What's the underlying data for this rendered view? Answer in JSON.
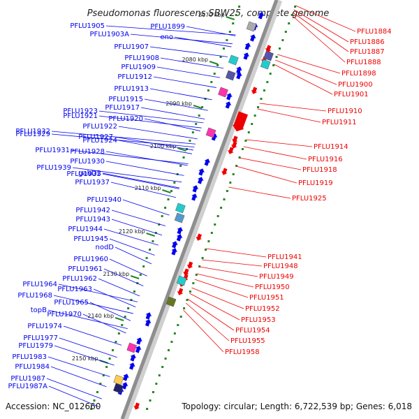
{
  "title": "Pseudomonas fluorescens SBW25, complete genome",
  "footer": {
    "accession": "Accession: NC_012660",
    "summary": "Topology: circular; Length: 6,722,539 bp; Genes: 6,018"
  },
  "colors": {
    "forward": "#0000ee",
    "reverse": "#ee0000",
    "tick": "#228822",
    "backbone": "#9a9a9a"
  },
  "kbp_ticks": [
    "2070 kbp",
    "2080 kbp",
    "2090 kbp",
    "2100 kbp",
    "2110 kbp",
    "2120 kbp",
    "2130 kbp",
    "2140 kbp",
    "2150 kbp"
  ],
  "left_labels": [
    "PFLU1905",
    "PFLU1899",
    "PFLU1903A",
    "eno",
    "PFLU1907",
    "PFLU1908",
    "PFLU1909",
    "PFLU1912",
    "PFLU1913",
    "PFLU1915",
    "PFLU1917",
    "PFLU1923",
    "PFLU1921",
    "PFLU1920",
    "PFLU1922",
    "PFLU1932",
    "PFLU1929",
    "PFLU1927",
    "PFLU1924",
    "PFLU1931",
    "PFLU1928",
    "PFLU1930",
    "PFLU1939",
    "gabD2",
    "PFLU1935",
    "PFLU1937",
    "PFLU1940",
    "PFLU1942",
    "PFLU1943",
    "PFLU1944",
    "PFLU1945",
    "nodD",
    "PFLU1960",
    "PFLU1961",
    "PFLU1962",
    "PFLU1964",
    "PFLU1963",
    "PFLU1968",
    "PFLU1965",
    "topB",
    "PFLU1970",
    "PFLU1974",
    "PFLU1977",
    "PFLU1979",
    "PFLU1983",
    "PFLU1984",
    "PFLU1987",
    "PFLU1987A"
  ],
  "right_labels": [
    "PFLU1884",
    "PFLU1886",
    "PFLU1887",
    "PFLU1888",
    "PFLU1898",
    "PFLU1900",
    "PFLU1901",
    "PFLU1910",
    "PFLU1911",
    "PFLU1914",
    "PFLU1916",
    "PFLU1918",
    "PFLU1919",
    "PFLU1925",
    "PFLU1941",
    "PFLU1948",
    "PFLU1949",
    "PFLU1950",
    "PFLU1951",
    "PFLU1952",
    "PFLU1953",
    "PFLU1954",
    "PFLU1955",
    "PFLU1958"
  ]
}
